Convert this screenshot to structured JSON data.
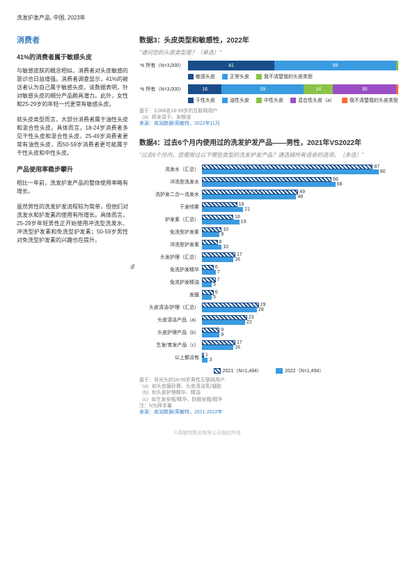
{
  "header": "洗发护发产品, 中国, 2023年",
  "left": {
    "title": "消费者",
    "h1": "41%的消费者属于敏感头皮",
    "p1": "与敏感皮肤的概念相似，消费者对头皮敏感的意识也日益增强。消费者调查显示，41%的被访者认为自己属于敏感头皮。该数据表明，针对敏感头皮的细分产品颇具潜力。此外，女性和25-29岁的年轻一代更常有敏感头皮。",
    "p2": "就头皮类型而言，大部分消费者属于油性头皮和混合性头皮。具体而言，18-24岁消费者多见干性头皮和混合性头皮，25-49岁消费者更常有油性头皮，而50-59岁消费者更可能属于干性头皮和中性头皮。",
    "h2": "产品使用率稳步攀升",
    "p3": "相比一年前，洗发护发产品的整体使用率略有增长。",
    "p4": "虽然男性的洗发护发流程较为简单，但他们对洗发水和护发素的使用有所增长。具体而言，25-29岁年轻男性正开始使用冲洗型洗发水、冲洗型护发素和免洗型护发素；50-59岁男性对免洗型护发素的兴趣也在提升。"
  },
  "chart3": {
    "title": "数据3：头皮类型和敏感性，2022年",
    "question": "\"请问您的头皮类型是？（单选）\"",
    "row1": {
      "label": "% 所有（N=3,000）",
      "segs": [
        {
          "v": 41,
          "c": "#1a4e8a",
          "t": "41"
        },
        {
          "v": 58,
          "c": "#3a9be0",
          "t": "58"
        },
        {
          "v": 1,
          "c": "#8bc34a",
          "t": ""
        }
      ]
    },
    "legend1": [
      {
        "c": "#1a4e8a",
        "l": "敏感头皮"
      },
      {
        "c": "#3a9be0",
        "l": "正常头皮"
      },
      {
        "c": "#8bc34a",
        "l": "我不清楚我的头皮类型"
      }
    ],
    "row2": {
      "label": "% 所有（N=3,000）",
      "segs": [
        {
          "v": 16,
          "c": "#1a4e8a",
          "t": "16"
        },
        {
          "v": 39,
          "c": "#3a9be0",
          "t": "39"
        },
        {
          "v": 14,
          "c": "#8bc34a",
          "t": "14"
        },
        {
          "v": 30,
          "c": "#9c4ec4",
          "t": "30"
        },
        {
          "v": 1,
          "c": "#ff6b35",
          "t": ""
        }
      ]
    },
    "legend2": [
      {
        "c": "#1a4e8a",
        "l": "干性头皮"
      },
      {
        "c": "#3a9be0",
        "l": "油性头皮"
      },
      {
        "c": "#8bc34a",
        "l": "中性头皮"
      },
      {
        "c": "#9c4ec4",
        "l": "混合性头皮（a）"
      },
      {
        "c": "#ff6b35",
        "l": "我不清楚我的头皮类型"
      }
    ],
    "foot1": "基于：3,000名18-59岁的互联网用户",
    "foot2": "（a）即发湿干、发根油",
    "foot3": "来源：库润数据/英敏特，2022年11月"
  },
  "chart4": {
    "title": "数据4：过去6个月内使用过的洗发护发产品——男性，2021年VS2022年",
    "question": "\"过去6个月内，您使用过以下哪些类型的洗发护发产品？请选择所有适合的选项。（多选）\"",
    "max": 100,
    "rows": [
      {
        "l": "洗发水（汇总）",
        "v21": 87,
        "v22": 90
      },
      {
        "l": "冲洗型洗发水",
        "v21": 66,
        "v22": 68
      },
      {
        "l": "洗护发二合一洗发水",
        "v21": 49,
        "v22": 48
      },
      {
        "l": "干发喷雾",
        "v21": 18,
        "v22": 21
      },
      {
        "l": "护发素（汇总）",
        "v21": 16,
        "v22": 19
      },
      {
        "l": "免洗型护发素",
        "v21": 10,
        "v22": 9
      },
      {
        "l": "冲洗型护发素",
        "v21": 8,
        "v22": 10
      },
      {
        "l": "头发护理（汇总）",
        "v21": 17,
        "v22": 16
      },
      {
        "l": "免洗护发精华",
        "v21": 6,
        "v22": 7
      },
      {
        "l": "免洗护发精油",
        "v21": 7,
        "v22": 5
      },
      {
        "l": "发膜",
        "v21": 6,
        "v22": 5
      },
      {
        "l": "头皮清洁/护理（汇总）",
        "v21": 29,
        "v22": 28
      },
      {
        "l": "头皮清洁产品（a）",
        "v21": 23,
        "v22": 22
      },
      {
        "l": "头皮护理产品（b）",
        "v21": 9,
        "v22": 9
      },
      {
        "l": "生发/育发产品（c）",
        "v21": 17,
        "v22": 16
      },
      {
        "l": "以上都没有",
        "v21": 1,
        "v22": 3
      }
    ],
    "legend": [
      {
        "l": "2021（N=1,494）",
        "style": "hatch"
      },
      {
        "l": "2022（N=1,494）",
        "style": "solid"
      }
    ],
    "foot": [
      "基于：非光头的18-59岁男性互联网用户",
      "（a）如头皮磨砂膏、头皮清洁乳/凝胶",
      "（b）如头皮护理精华、精油",
      "（c）如生发安瓶/精华、防脱安瓶/精华",
      "注：N为样本量",
      "来源：库润数据/英敏特，2021-2022年"
    ]
  },
  "copyright": "©英敏特集团有限公司版权所有"
}
